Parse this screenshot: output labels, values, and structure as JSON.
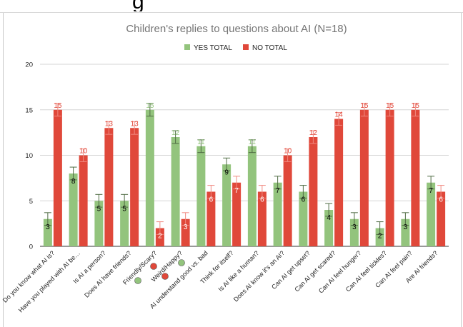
{
  "chart_data": {
    "type": "bar",
    "title": "Children's replies to questions about AI (N=18)",
    "xlabel": "",
    "ylabel": "",
    "ylim": [
      0,
      20
    ],
    "yticks": [
      0,
      5,
      10,
      15,
      20
    ],
    "grid": true,
    "legend_position": "top",
    "categories": [
      "Do you know what AI is?",
      "Have you played with AI be…",
      "Is AI a person?",
      "Does AI have friends?",
      "Friendly/Scary?",
      "Weird/Happy?",
      "AI understand good vs. bad",
      "Think for itself?",
      "Is AI like a human?",
      "Does AI know it's an AI?",
      "Can AI get upset?",
      "Can AI get scared?",
      "Can AI feel hunger?",
      "Can AI feel tickles?",
      "Can AI feel pain?",
      "Are AI friends?"
    ],
    "series": [
      {
        "name": "YES TOTAL",
        "color": "#93c47d",
        "label_color_default": "#000000",
        "label_color_tall": "#93c47d",
        "values": [
          3,
          8,
          5,
          5,
          15,
          12,
          11,
          9,
          11,
          7,
          6,
          4,
          3,
          2,
          3,
          7
        ]
      },
      {
        "name": "NO TOTAL",
        "color": "#e0483a",
        "label_color_default": "#ffffff",
        "label_color_tall": "#e0483a",
        "values": [
          15,
          10,
          13,
          13,
          2,
          3,
          6,
          7,
          6,
          10,
          12,
          14,
          15,
          15,
          15,
          6
        ]
      }
    ],
    "error_bar": 0.7,
    "category_icons": [
      {
        "category_index": 4,
        "icon": "green-circle-icon",
        "color": "#93c47d"
      },
      {
        "category_index": 5,
        "icon": "red-circle-icon",
        "color": "#e0483a"
      },
      {
        "category_index": 5,
        "icon": "red-circle-icon",
        "color": "#e0483a"
      },
      {
        "category_index": 5,
        "icon": "green-circle-icon",
        "color": "#93c47d"
      }
    ]
  },
  "header_partial_text": "g"
}
